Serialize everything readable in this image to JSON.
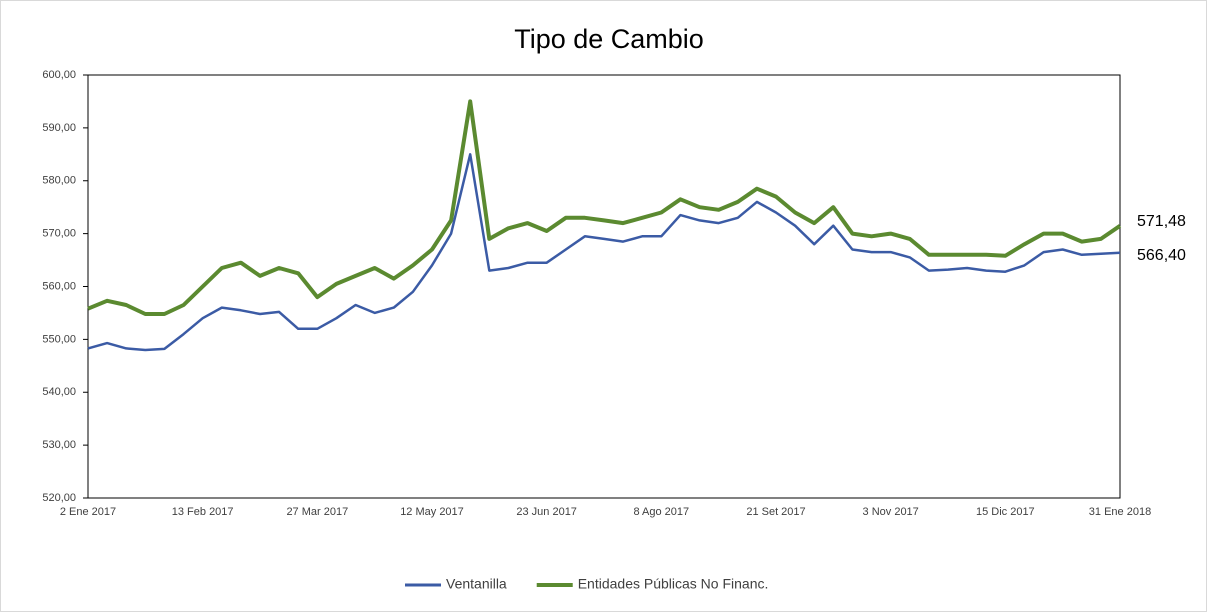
{
  "chart_data": {
    "type": "line",
    "title": "Tipo de Cambio",
    "categories": [
      "2 Ene 2017",
      null,
      null,
      null,
      null,
      null,
      "13 Feb 2017",
      null,
      null,
      null,
      null,
      null,
      "27 Mar 2017",
      null,
      null,
      null,
      null,
      null,
      "12 May 2017",
      null,
      null,
      null,
      null,
      null,
      "23 Jun 2017",
      null,
      null,
      null,
      null,
      null,
      "8 Ago 2017",
      null,
      null,
      null,
      null,
      null,
      "21 Set 2017",
      null,
      null,
      null,
      null,
      null,
      "3 Nov 2017",
      null,
      null,
      null,
      null,
      null,
      "15 Dic 2017",
      null,
      null,
      null,
      null,
      null,
      "31 Ene 2018"
    ],
    "series": [
      {
        "name": "Ventanilla",
        "color": "#3b5ba5",
        "value_label": "566,40",
        "values": [
          548.3,
          549.3,
          548.3,
          548.0,
          548.2,
          551.0,
          554.0,
          556.0,
          555.5,
          554.8,
          555.2,
          552.0,
          552.0,
          554.0,
          556.5,
          555.0,
          556.0,
          559.0,
          564.0,
          570.0,
          585.0,
          563.0,
          563.5,
          564.5,
          564.5,
          567.0,
          569.5,
          569.0,
          568.5,
          569.5,
          569.5,
          573.5,
          572.5,
          572.0,
          573.0,
          576.0,
          574.0,
          571.5,
          568.0,
          571.5,
          567.0,
          566.5,
          566.5,
          565.5,
          563.0,
          563.2,
          563.5,
          563.0,
          562.8,
          564.0,
          566.5,
          567.0,
          566.0,
          566.2,
          566.4
        ]
      },
      {
        "name": "Entidades Públicas No Financ.",
        "color": "#5b8a30",
        "value_label": "571,48",
        "values": [
          555.8,
          557.3,
          556.5,
          554.8,
          554.8,
          556.5,
          560.0,
          563.5,
          564.5,
          562.0,
          563.5,
          562.5,
          558.0,
          560.5,
          562.0,
          563.5,
          561.5,
          564.0,
          567.0,
          572.5,
          595.0,
          569.0,
          571.0,
          572.0,
          570.5,
          573.0,
          573.0,
          572.5,
          572.0,
          573.0,
          574.0,
          576.5,
          575.0,
          574.5,
          576.0,
          578.5,
          577.0,
          574.0,
          572.0,
          575.0,
          570.0,
          569.5,
          570.0,
          569.0,
          566.0,
          566.0,
          566.0,
          566.0,
          565.8,
          568.0,
          570.0,
          570.0,
          568.5,
          569.0,
          571.48
        ]
      }
    ],
    "ylim": [
      520,
      600
    ],
    "yticks": [
      {
        "value": 520,
        "label": "520,00"
      },
      {
        "value": 530,
        "label": "530,00"
      },
      {
        "value": 540,
        "label": "540,00"
      },
      {
        "value": 550,
        "label": "550,00"
      },
      {
        "value": 560,
        "label": "560,00"
      },
      {
        "value": 570,
        "label": "570,00"
      },
      {
        "value": 580,
        "label": "580,00"
      },
      {
        "value": 590,
        "label": "590,00"
      },
      {
        "value": 600,
        "label": "600,00"
      }
    ],
    "grid": false,
    "legend": "bottom"
  }
}
